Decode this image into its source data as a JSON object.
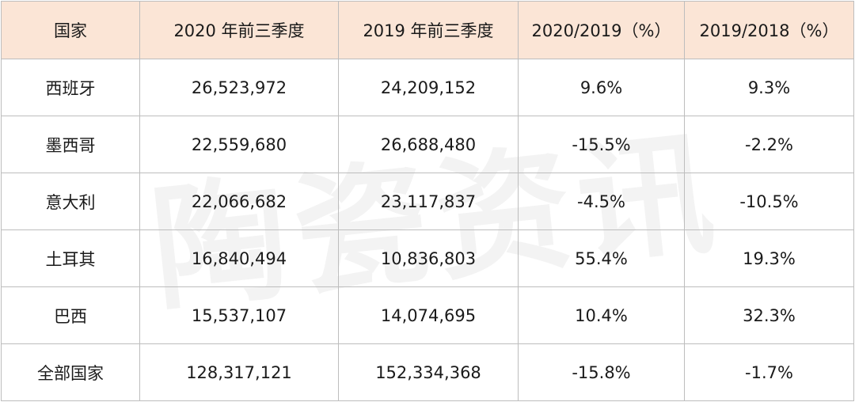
{
  "table": {
    "headers": [
      "国家",
      "2020 年前三季度",
      "2019 年前三季度",
      "2020/2019（%）",
      "2019/2018（%）"
    ],
    "rows": [
      [
        "西班牙",
        "26,523,972",
        "24,209,152",
        "9.6%",
        "9.3%"
      ],
      [
        "墨西哥",
        "22,559,680",
        "26,688,480",
        "-15.5%",
        "-2.2%"
      ],
      [
        "意大利",
        "22,066,682",
        "23,117,837",
        "-4.5%",
        "-10.5%"
      ],
      [
        "土耳其",
        "16,840,494",
        "10,836,803",
        "55.4%",
        "19.3%"
      ],
      [
        "巴西",
        "15,537,107",
        "14,074,695",
        "10.4%",
        "32.3%"
      ],
      [
        "全部国家",
        "128,317,121",
        "152,334,368",
        "-15.8%",
        "-1.7%"
      ]
    ]
  },
  "watermark": {
    "text": "陶瓷资讯"
  },
  "colors": {
    "header_bg": "#fbe5d6",
    "border": "#bdbdbd"
  }
}
